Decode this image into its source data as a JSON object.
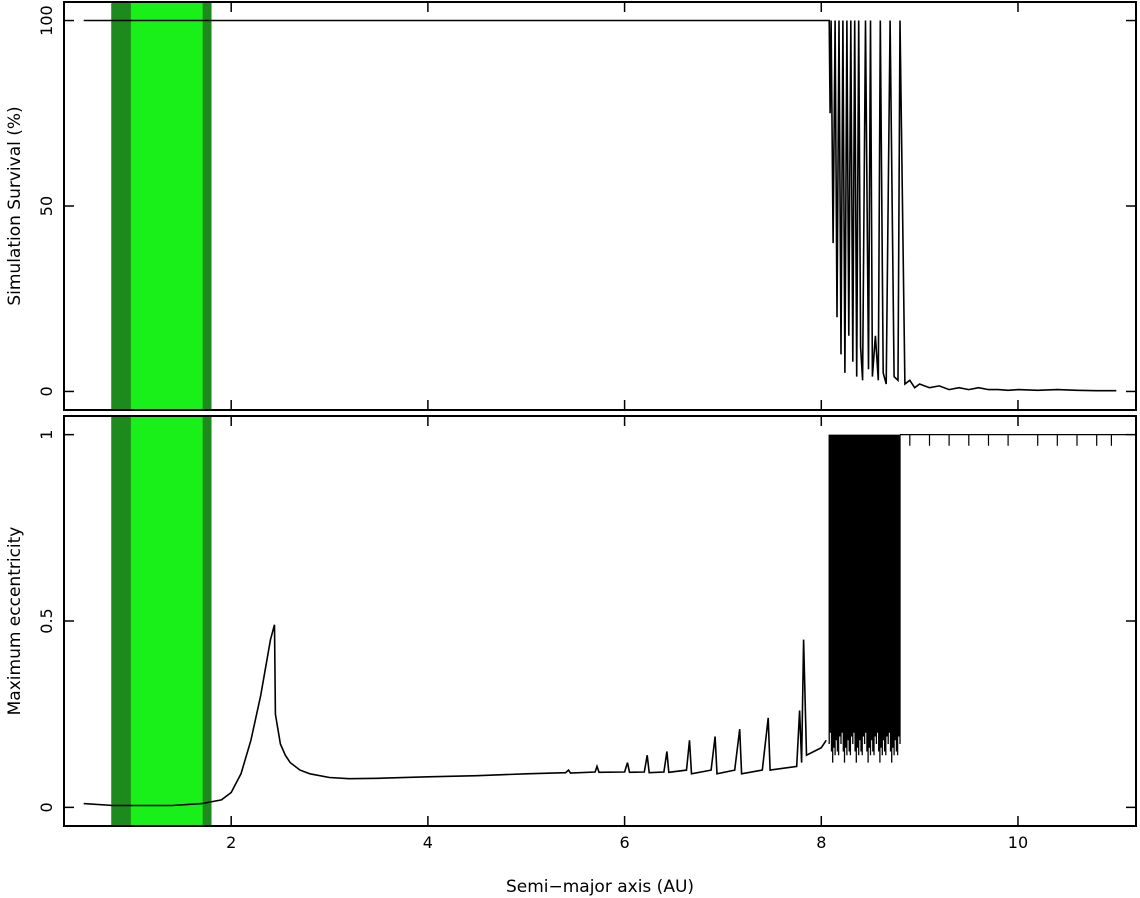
{
  "figure": {
    "xlabel": "Semi−major axis (AU)",
    "colors": {
      "band_outer": "#1d8a1d",
      "band_inner": "#19f019",
      "line": "#000000",
      "frame": "#000000",
      "background": "#ffffff"
    }
  },
  "chart_data": [
    {
      "type": "line",
      "panel": "top",
      "title": "",
      "xlabel": "",
      "ylabel": "Simulation Survival (%)",
      "xlim": [
        0.3,
        11.2
      ],
      "ylim": [
        -5,
        105
      ],
      "xticks": [
        2,
        4,
        6,
        8,
        10
      ],
      "yticks": [
        0,
        50,
        100
      ],
      "ytick_labels": [
        "0",
        "50",
        "100"
      ],
      "grid": false,
      "shaded_regions": [
        {
          "x": [
            0.78,
            1.8
          ],
          "role": "outer"
        },
        {
          "x": [
            0.98,
            1.71
          ],
          "role": "inner"
        }
      ],
      "series": [
        {
          "x": [
            0.5,
            8.08,
            8.09,
            8.1,
            8.12,
            8.14,
            8.16,
            8.18,
            8.2,
            8.22,
            8.24,
            8.26,
            8.28,
            8.3,
            8.32,
            8.34,
            8.36,
            8.38,
            8.4,
            8.42,
            8.45,
            8.48,
            8.5,
            8.52,
            8.55,
            8.58,
            8.6,
            8.63,
            8.66,
            8.7,
            8.74,
            8.78,
            8.8,
            8.85,
            8.9,
            8.95,
            9.0,
            9.1,
            9.2,
            9.3,
            9.4,
            9.5,
            9.6,
            9.7,
            9.8,
            9.9,
            10.0,
            10.2,
            10.4,
            10.6,
            10.8,
            11.0
          ],
          "y": [
            100,
            100,
            75,
            100,
            40,
            100,
            20,
            100,
            10,
            100,
            5,
            100,
            15,
            100,
            8,
            100,
            4,
            100,
            12,
            3,
            100,
            6,
            100,
            4,
            15,
            3,
            100,
            5,
            2,
            100,
            4,
            3,
            100,
            2,
            3,
            1,
            2,
            1,
            1.5,
            0.5,
            1,
            0.5,
            1,
            0.5,
            0.5,
            0.3,
            0.5,
            0.3,
            0.5,
            0.3,
            0.2,
            0.2
          ]
        }
      ]
    },
    {
      "type": "line",
      "panel": "bottom",
      "title": "",
      "xlabel": "Semi−major axis (AU)",
      "ylabel": "Maximum eccentricity",
      "xlim": [
        0.3,
        11.2
      ],
      "ylim": [
        -0.05,
        1.05
      ],
      "xticks": [
        2,
        4,
        6,
        8,
        10
      ],
      "xtick_labels": [
        "2",
        "4",
        "6",
        "8",
        "10"
      ],
      "yticks": [
        0,
        0.5,
        1
      ],
      "ytick_labels": [
        "0",
        "0.5",
        "1"
      ],
      "grid": false,
      "shaded_regions": [
        {
          "x": [
            0.78,
            1.8
          ],
          "role": "outer"
        },
        {
          "x": [
            0.98,
            1.71
          ],
          "role": "inner"
        }
      ],
      "series": [
        {
          "x": [
            0.5,
            0.8,
            1.0,
            1.4,
            1.7,
            1.9,
            2.0,
            2.1,
            2.2,
            2.3,
            2.4,
            2.44,
            2.45,
            2.5,
            2.55,
            2.6,
            2.7,
            2.8,
            3.0,
            3.2,
            3.5,
            4.0,
            4.5,
            5.0,
            5.4,
            5.43,
            5.45,
            5.7,
            5.72,
            5.74,
            6.0,
            6.03,
            6.05,
            6.2,
            6.23,
            6.25,
            6.4,
            6.43,
            6.45,
            6.63,
            6.66,
            6.68,
            6.88,
            6.92,
            6.94,
            7.12,
            7.17,
            7.19,
            7.4,
            7.46,
            7.48,
            7.75,
            7.78,
            7.8,
            7.82,
            7.85,
            8.0,
            8.05
          ],
          "y": [
            0.01,
            0.005,
            0.005,
            0.005,
            0.01,
            0.02,
            0.04,
            0.09,
            0.18,
            0.3,
            0.45,
            0.49,
            0.25,
            0.17,
            0.14,
            0.12,
            0.1,
            0.09,
            0.08,
            0.077,
            0.078,
            0.082,
            0.085,
            0.09,
            0.093,
            0.1,
            0.092,
            0.095,
            0.11,
            0.094,
            0.095,
            0.12,
            0.094,
            0.095,
            0.14,
            0.093,
            0.095,
            0.15,
            0.094,
            0.1,
            0.18,
            0.09,
            0.1,
            0.19,
            0.09,
            0.1,
            0.21,
            0.09,
            0.1,
            0.24,
            0.1,
            0.11,
            0.26,
            0.12,
            0.45,
            0.14,
            0.16,
            0.18
          ]
        }
      ],
      "chaotic_region": {
        "x_start": 8.08,
        "x_end": 8.8,
        "min_values": [
          0.17,
          0.2,
          0.15,
          0.12,
          0.16,
          0.14,
          0.18,
          0.15,
          0.14,
          0.19
        ],
        "max_value": 1,
        "sparse_above_1": [
          8.9,
          9.1,
          9.3,
          9.5,
          9.7,
          9.9,
          10.2,
          10.4,
          10.6,
          10.8,
          10.95
        ]
      }
    }
  ]
}
